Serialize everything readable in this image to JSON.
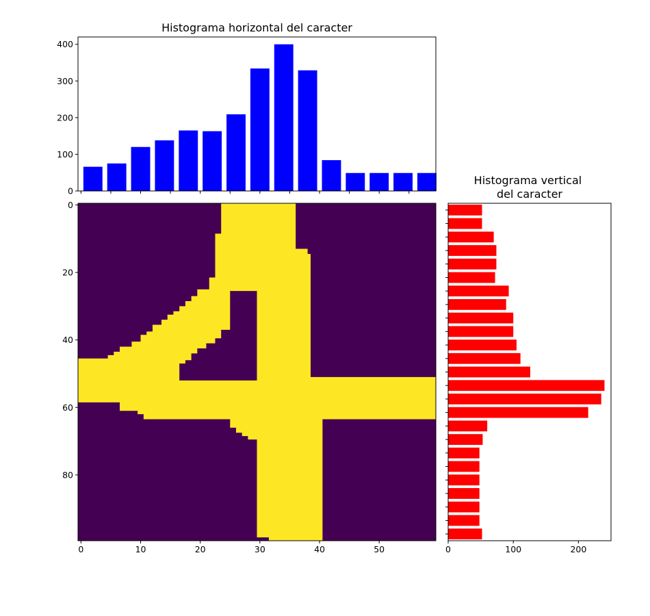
{
  "chart_data": [
    {
      "type": "bar",
      "title": "Histograma horizontal del caracter",
      "xlabel": "",
      "ylabel": "",
      "bar_color": "#0000ff",
      "x": [
        2,
        6,
        10,
        14,
        18,
        22,
        26,
        30,
        34,
        38,
        42,
        46,
        50,
        54,
        58
      ],
      "values": [
        66,
        75,
        120,
        138,
        165,
        163,
        209,
        334,
        400,
        329,
        84,
        49,
        49,
        49,
        49
      ],
      "xlim": [
        -0.5,
        59.5
      ],
      "ylim": [
        0,
        420
      ],
      "yticks": [
        0,
        100,
        200,
        300,
        400
      ],
      "shared_x_with": "image",
      "grid": false
    },
    {
      "type": "heatmap",
      "subtype": "binary-image",
      "title": "",
      "colormap": "viridis",
      "colors": {
        "background": "#440154",
        "foreground": "#fde725"
      },
      "shape": [
        100,
        60
      ],
      "xticks": [
        0,
        10,
        20,
        30,
        40,
        50
      ],
      "yticks": [
        0,
        20,
        40,
        60,
        80
      ],
      "content": "handwritten digit 4",
      "grid": false
    },
    {
      "type": "bar",
      "orientation": "horizontal",
      "title": "Histograma vertical\ndel caracter",
      "title_lines": [
        "Histograma vertical",
        "del caracter"
      ],
      "xlabel": "",
      "ylabel": "",
      "bar_color": "#ff0000",
      "y": [
        2,
        6,
        10,
        14,
        18,
        22,
        26,
        30,
        34,
        38,
        42,
        46,
        50,
        54,
        58,
        62,
        66,
        70,
        74,
        78,
        82,
        86,
        90,
        94,
        98
      ],
      "values": [
        52,
        52,
        70,
        74,
        74,
        72,
        93,
        89,
        100,
        100,
        105,
        111,
        126,
        240,
        235,
        215,
        60,
        53,
        48,
        48,
        48,
        48,
        48,
        48,
        52
      ],
      "xlim": [
        0,
        250
      ],
      "xticks": [
        0,
        100,
        200
      ],
      "shared_y_with": "image",
      "grid": false
    }
  ]
}
